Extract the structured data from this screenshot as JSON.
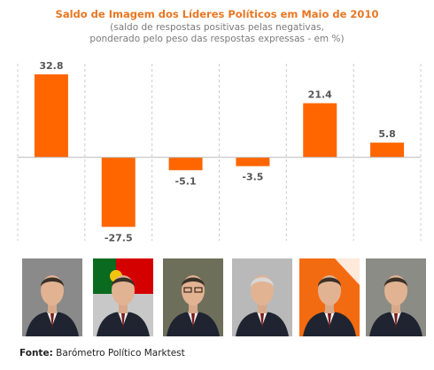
{
  "title": "Saldo de Imagem dos Líderes Políticos em Maio de 2010",
  "subtitle_line1": "(saldo de respostas positivas pelas negativas,",
  "subtitle_line2": "ponderado pelo peso das respostas expressas - em %)",
  "source_label": "Fonte:",
  "source_text": "Barómetro Político Marktest",
  "colors": {
    "bar": "#ff6600",
    "title": "#e87722",
    "label": "#555555",
    "grid": "#cccccc"
  },
  "chart_data": {
    "type": "bar",
    "values": [
      32.8,
      -27.5,
      -5.1,
      -3.5,
      21.4,
      5.8
    ],
    "value_labels": [
      "32.8",
      "-27.5",
      "-5.1",
      "-3.5",
      "21.4",
      "5.8"
    ],
    "ylim": [
      -33,
      37
    ],
    "grid": "vertical-dashed separators, solid zero baseline"
  },
  "portraits": [
    {
      "icon": "portrait-1-icon",
      "bg": "#8a8a8a",
      "flag": false
    },
    {
      "icon": "portrait-2-icon",
      "bg": "#c8c8c8",
      "flag": true
    },
    {
      "icon": "portrait-3-icon",
      "bg": "#6e6f5a",
      "flag": false
    },
    {
      "icon": "portrait-4-icon",
      "bg": "#b9b9b9",
      "flag": false
    },
    {
      "icon": "portrait-5-icon",
      "bg": "#f36b10",
      "flag": false
    },
    {
      "icon": "portrait-6-icon",
      "bg": "#8c8c86",
      "flag": false
    }
  ]
}
